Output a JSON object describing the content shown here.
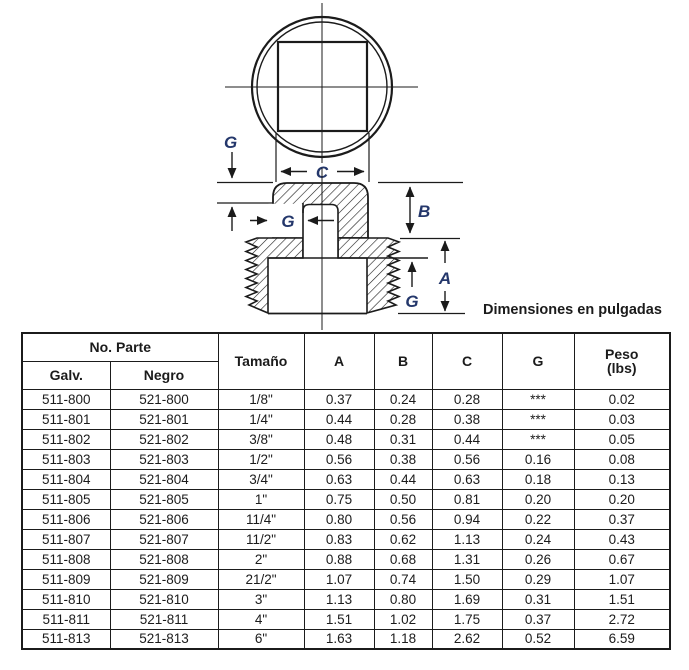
{
  "drawing": {
    "caption": "Dimensiones en pulgadas",
    "labels": {
      "g_top": "G",
      "c": "C",
      "g_mid": "G",
      "b": "B",
      "a": "A",
      "g_bottom": "G"
    }
  },
  "colors": {
    "line": "#1b1b1b",
    "dim_letter": "#24376b"
  },
  "table": {
    "header": {
      "no_parte": "No. Parte",
      "galv": "Galv.",
      "negro": "Negro",
      "tamano": "Tamaño",
      "a": "A",
      "b": "B",
      "c": "C",
      "g": "G",
      "peso": "Peso",
      "peso_unit": "(lbs)"
    },
    "rows": [
      [
        "511-800",
        "521-800",
        "1/8\"",
        "0.37",
        "0.24",
        "0.28",
        "***",
        "0.02"
      ],
      [
        "511-801",
        "521-801",
        "1/4\"",
        "0.44",
        "0.28",
        "0.38",
        "***",
        "0.03"
      ],
      [
        "511-802",
        "521-802",
        "3/8\"",
        "0.48",
        "0.31",
        "0.44",
        "***",
        "0.05"
      ],
      [
        "511-803",
        "521-803",
        "1/2\"",
        "0.56",
        "0.38",
        "0.56",
        "0.16",
        "0.08"
      ],
      [
        "511-804",
        "521-804",
        "3/4\"",
        "0.63",
        "0.44",
        "0.63",
        "0.18",
        "0.13"
      ],
      [
        "511-805",
        "521-805",
        "1\"",
        "0.75",
        "0.50",
        "0.81",
        "0.20",
        "0.20"
      ],
      [
        "511-806",
        "521-806",
        "11/4\"",
        "0.80",
        "0.56",
        "0.94",
        "0.22",
        "0.37"
      ],
      [
        "511-807",
        "521-807",
        "11/2\"",
        "0.83",
        "0.62",
        "1.13",
        "0.24",
        "0.43"
      ],
      [
        "511-808",
        "521-808",
        "2\"",
        "0.88",
        "0.68",
        "1.31",
        "0.26",
        "0.67"
      ],
      [
        "511-809",
        "521-809",
        "21/2\"",
        "1.07",
        "0.74",
        "1.50",
        "0.29",
        "1.07"
      ],
      [
        "511-810",
        "521-810",
        "3\"",
        "1.13",
        "0.80",
        "1.69",
        "0.31",
        "1.51"
      ],
      [
        "511-811",
        "521-811",
        "4\"",
        "1.51",
        "1.02",
        "1.75",
        "0.37",
        "2.72"
      ],
      [
        "511-813",
        "521-813",
        "6\"",
        "1.63",
        "1.18",
        "2.62",
        "0.52",
        "6.59"
      ]
    ]
  }
}
